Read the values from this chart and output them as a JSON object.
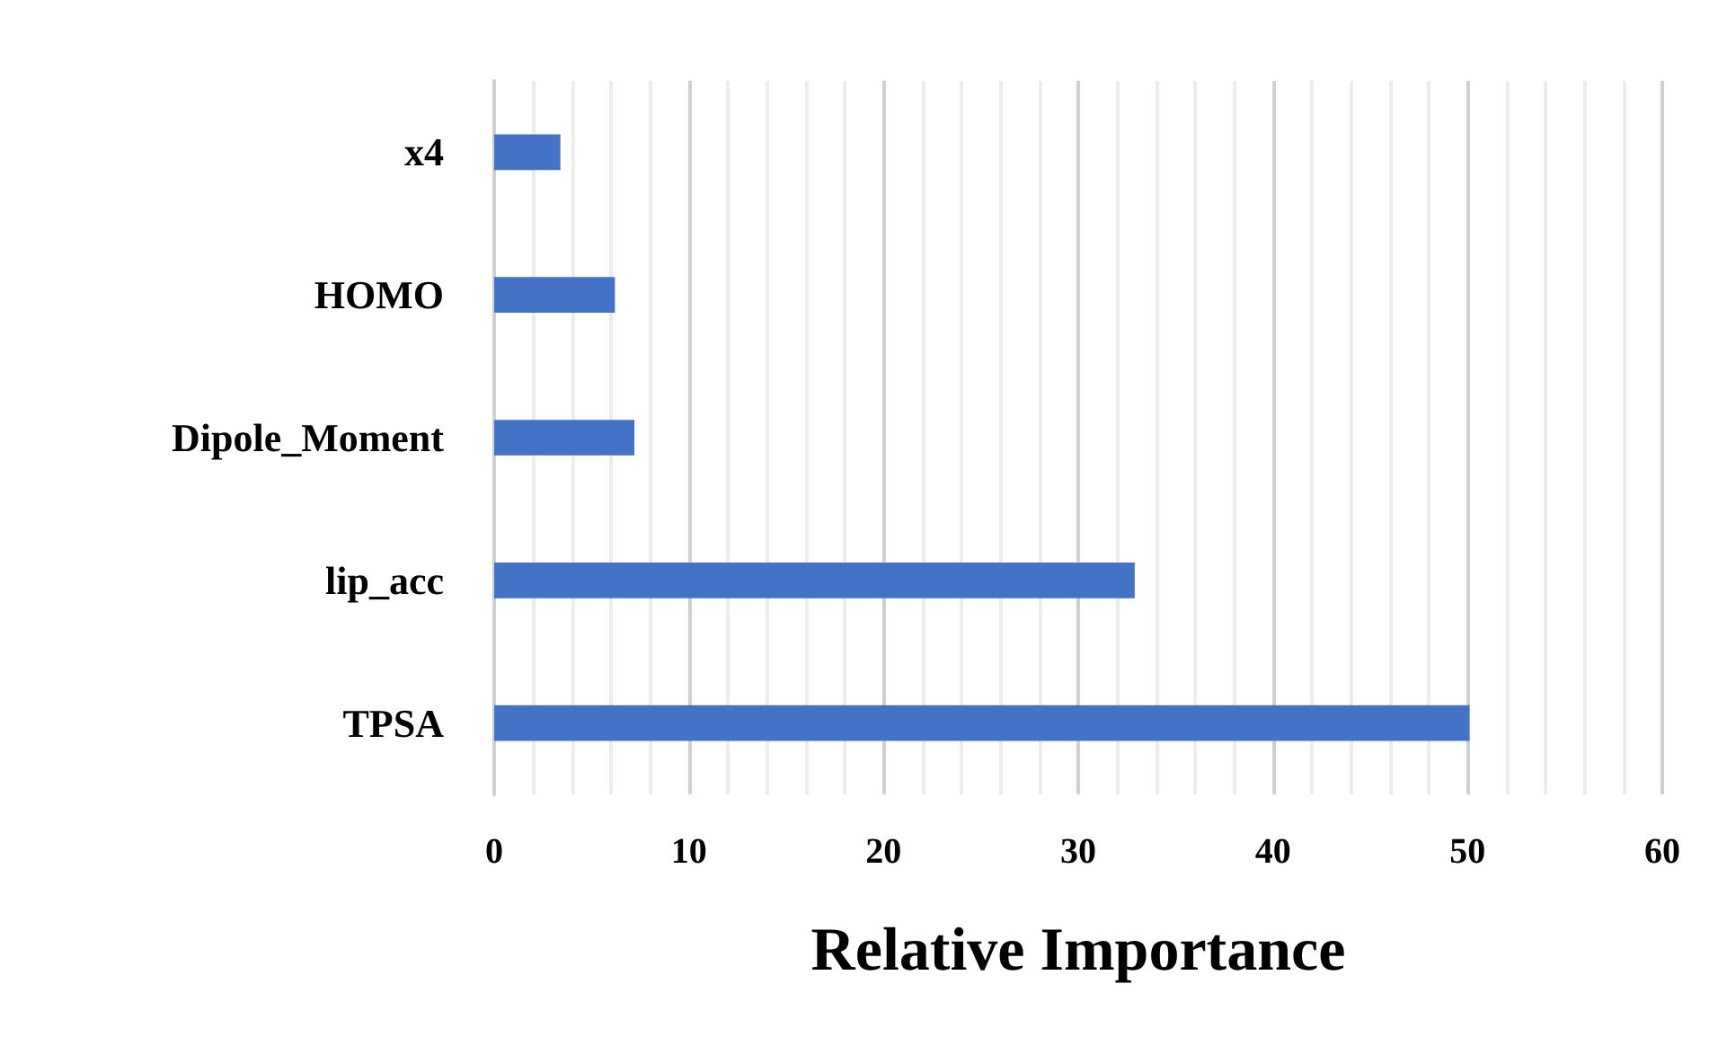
{
  "chart_data": {
    "type": "bar",
    "orientation": "horizontal",
    "xlabel": "Relative Importance",
    "categories": [
      "x4",
      "HOMO",
      "Dipole_Moment",
      "lip_acc",
      "TPSA"
    ],
    "values": [
      3.4,
      6.2,
      7.2,
      32.9,
      50.1
    ],
    "color": "#4472c4",
    "xlim": [
      0,
      60
    ],
    "xticks": [
      0,
      {
        "value": 2,
        "label": null
      },
      {
        "value": 4,
        "label": null
      },
      {
        "value": 6,
        "label": null
      },
      {
        "value": 8,
        "label": null
      },
      10,
      {
        "value": 12,
        "label": null
      },
      {
        "value": 14,
        "label": null
      },
      {
        "value": 16,
        "label": null
      },
      {
        "value": 18,
        "label": null
      },
      20,
      {
        "value": 22,
        "label": null
      },
      {
        "value": 24,
        "label": null
      },
      {
        "value": 26,
        "label": null
      },
      {
        "value": 28,
        "label": null
      },
      30,
      {
        "value": 32,
        "label": null
      },
      {
        "value": 34,
        "label": null
      },
      {
        "value": 36,
        "label": null
      },
      {
        "value": 38,
        "label": null
      },
      40,
      {
        "value": 42,
        "label": null
      },
      {
        "value": 44,
        "label": null
      },
      {
        "value": 46,
        "label": null
      },
      {
        "value": 48,
        "label": null
      },
      50,
      {
        "value": 52,
        "label": null
      },
      {
        "value": 54,
        "label": null
      },
      {
        "value": 56,
        "label": null
      },
      {
        "value": 58,
        "label": null
      },
      60
    ],
    "grid": "x"
  }
}
